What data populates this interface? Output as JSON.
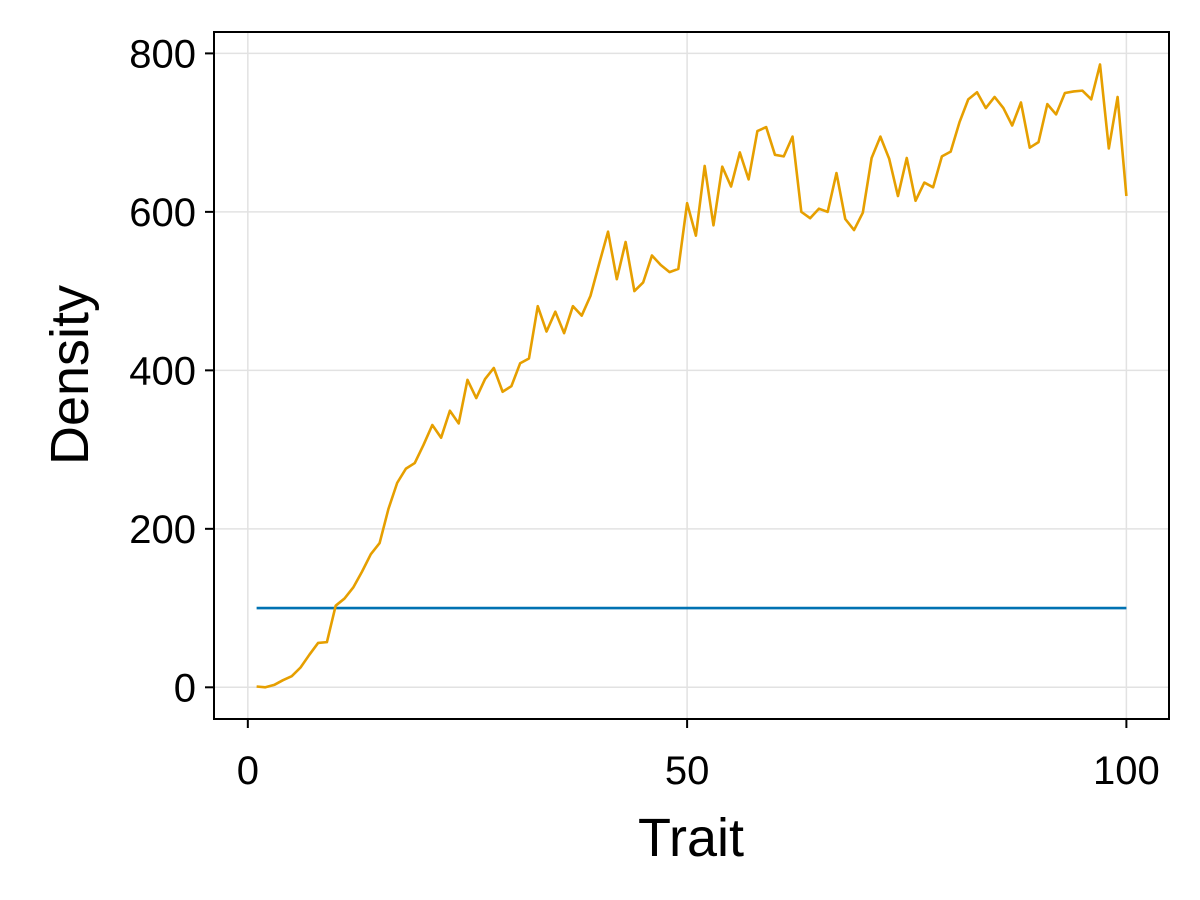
{
  "chart_data": {
    "type": "line",
    "title": "",
    "xlabel": "Trait",
    "ylabel": "Density",
    "xlim": [
      -3.85,
      104.85
    ],
    "ylim": [
      -40,
      827
    ],
    "xticks": [
      0,
      50,
      100
    ],
    "yticks": [
      0,
      200,
      400,
      600,
      800
    ],
    "grid": true,
    "legend": "none",
    "series": [
      {
        "color": "#0072b2",
        "x": [
          1,
          100
        ],
        "y": [
          100,
          100
        ]
      },
      {
        "color": "#e69f00",
        "x": [
          1,
          2,
          3,
          4,
          5,
          6,
          7,
          8,
          9,
          10,
          11,
          12,
          13,
          14,
          15,
          16,
          17,
          18,
          19,
          20,
          21,
          22,
          23,
          24,
          25,
          26,
          27,
          28,
          29,
          30,
          31,
          32,
          33,
          34,
          35,
          36,
          37,
          38,
          39,
          40,
          41,
          42,
          43,
          44,
          45,
          46,
          47,
          48,
          49,
          50,
          51,
          52,
          53,
          54,
          55,
          56,
          57,
          58,
          59,
          60,
          61,
          62,
          63,
          64,
          65,
          66,
          67,
          68,
          69,
          70,
          71,
          72,
          73,
          74,
          75,
          76,
          77,
          78,
          79,
          80,
          81,
          82,
          83,
          84,
          85,
          86,
          87,
          88,
          89,
          90,
          91,
          92,
          93,
          94,
          95,
          96,
          97,
          98,
          99,
          100
        ],
        "y": [
          1,
          0,
          3,
          9,
          14,
          25,
          41,
          56,
          57,
          103,
          112,
          126,
          146,
          168,
          182,
          225,
          258,
          276,
          283,
          306,
          331,
          315,
          349,
          333,
          388,
          365,
          389,
          403,
          373,
          380,
          409,
          415,
          481,
          449,
          474,
          447,
          481,
          469,
          494,
          535,
          575,
          515,
          562,
          500,
          511,
          545,
          533,
          524,
          528,
          611,
          570,
          658,
          583,
          657,
          632,
          675,
          641,
          702,
          707,
          672,
          670,
          695,
          600,
          592,
          604,
          600,
          649,
          591,
          577,
          599,
          668,
          695,
          667,
          620,
          668,
          614,
          637,
          631,
          670,
          676,
          713,
          742,
          751,
          731,
          745,
          731,
          709,
          738,
          681,
          688,
          736,
          723,
          750,
          752,
          753,
          742,
          786,
          680,
          745,
          620
        ]
      }
    ]
  }
}
